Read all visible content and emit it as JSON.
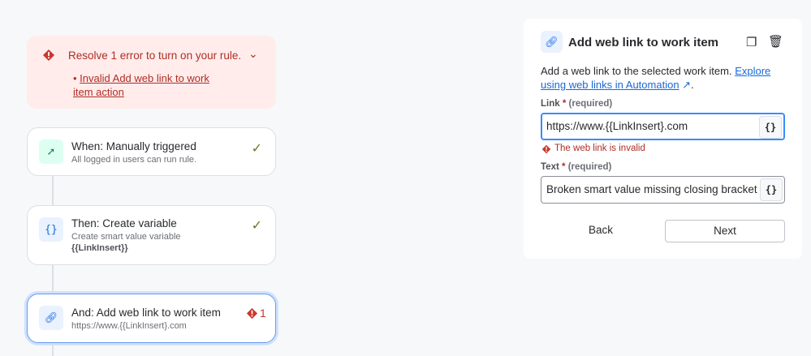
{
  "error_banner": {
    "title": "Resolve 1 error to turn on your rule.",
    "items": [
      "Invalid Add web link to work item action"
    ]
  },
  "steps": [
    {
      "title": "When: Manually triggered",
      "subtitle": "All logged in users can run rule.",
      "status": "valid",
      "icon": "cursor-click-icon"
    },
    {
      "title": "Then: Create variable",
      "subtitle": "Create smart value variable",
      "detail": "{{LinkInsert}}",
      "status": "valid",
      "icon": "braces-icon"
    },
    {
      "title": "And: Add web link to work item",
      "subtitle": "https://www.{{LinkInsert}.com",
      "status": "error",
      "error_count": "1",
      "icon": "link-icon"
    }
  ],
  "panel": {
    "title": "Add web link to work item",
    "description": "Add a web link to the selected work item.",
    "link_text": "Explore using web links in Automation",
    "link_field": {
      "label": "Link",
      "required": "(required)",
      "value": "https://www.{{LinkInsert}.com",
      "error": "The web link is invalid"
    },
    "text_field": {
      "label": "Text",
      "required": "(required)",
      "value": "Broken smart value missing closing bracket"
    },
    "back_label": "Back",
    "next_label": "Next"
  },
  "colors": {
    "error": "#ae2e24",
    "error_bg": "#ffeceb",
    "accent": "#1868db",
    "success": "#5b7f24"
  }
}
